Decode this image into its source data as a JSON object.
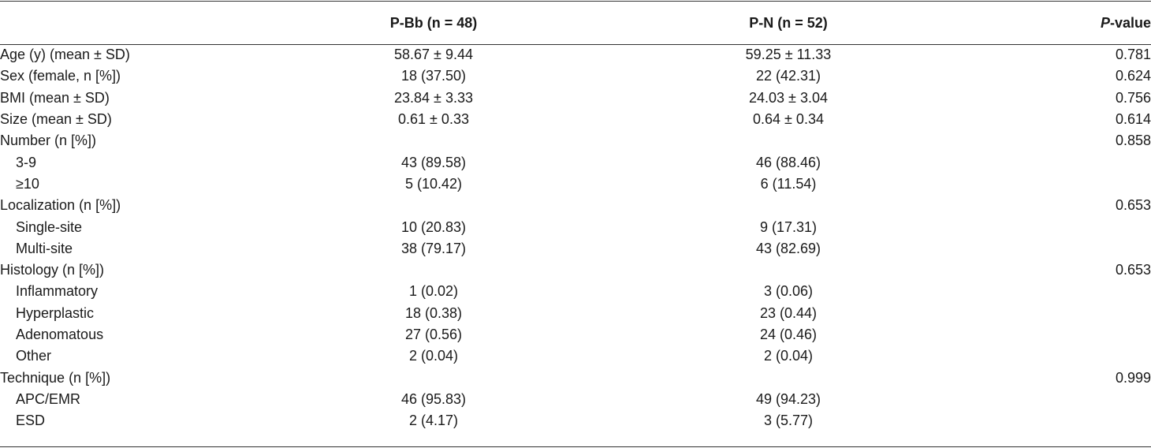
{
  "header": {
    "label": "",
    "pbb": "P-Bb (n = 48)",
    "pn": "P-N (n = 52)",
    "p_italic": "P",
    "p_rest": "-value"
  },
  "rows": [
    {
      "label": "Age (y) (mean ± SD)",
      "pbb": "58.67 ± 9.44",
      "pn": "59.25 ± 11.33",
      "p": "0.781"
    },
    {
      "label": "Sex (female, n [%])",
      "pbb": "18 (37.50)",
      "pn": "22 (42.31)",
      "p": "0.624"
    },
    {
      "label": "BMI (mean ± SD)",
      "pbb": "23.84 ± 3.33",
      "pn": "24.03 ± 3.04",
      "p": "0.756"
    },
    {
      "label": "Size (mean ± SD)",
      "pbb": "0.61 ± 0.33",
      "pn": "0.64 ± 0.34",
      "p": "0.614"
    },
    {
      "label": "Number (n [%])",
      "pbb": "",
      "pn": "",
      "p": "0.858"
    },
    {
      "label": "3-9",
      "pbb": "43 (89.58)",
      "pn": "46 (88.46)",
      "p": "",
      "sub": true
    },
    {
      "label": "≥10",
      "pbb": "5 (10.42)",
      "pn": "6 (11.54)",
      "p": "",
      "sub": true
    },
    {
      "label": "Localization (n [%])",
      "pbb": "",
      "pn": "",
      "p": "0.653"
    },
    {
      "label": "Single-site",
      "pbb": "10 (20.83)",
      "pn": "9 (17.31)",
      "p": "",
      "sub": true
    },
    {
      "label": "Multi-site",
      "pbb": "38 (79.17)",
      "pn": "43 (82.69)",
      "p": "",
      "sub": true
    },
    {
      "label": "Histology (n [%])",
      "pbb": "",
      "pn": "",
      "p": "0.653"
    },
    {
      "label": "Inflammatory",
      "pbb": "1 (0.02)",
      "pn": "3 (0.06)",
      "p": "",
      "sub": true
    },
    {
      "label": "Hyperplastic",
      "pbb": "18 (0.38)",
      "pn": "23 (0.44)",
      "p": "",
      "sub": true
    },
    {
      "label": "Adenomatous",
      "pbb": "27 (0.56)",
      "pn": "24 (0.46)",
      "p": "",
      "sub": true
    },
    {
      "label": "Other",
      "pbb": "2 (0.04)",
      "pn": "2 (0.04)",
      "p": "",
      "sub": true
    },
    {
      "label": "Technique (n [%])",
      "pbb": "",
      "pn": "",
      "p": "0.999"
    },
    {
      "label": "APC/EMR",
      "pbb": "46 (95.83)",
      "pn": "49 (94.23)",
      "p": "",
      "sub": true
    },
    {
      "label": "ESD",
      "pbb": "2 (4.17)",
      "pn": "3 (5.77)",
      "p": "",
      "sub": true
    }
  ]
}
